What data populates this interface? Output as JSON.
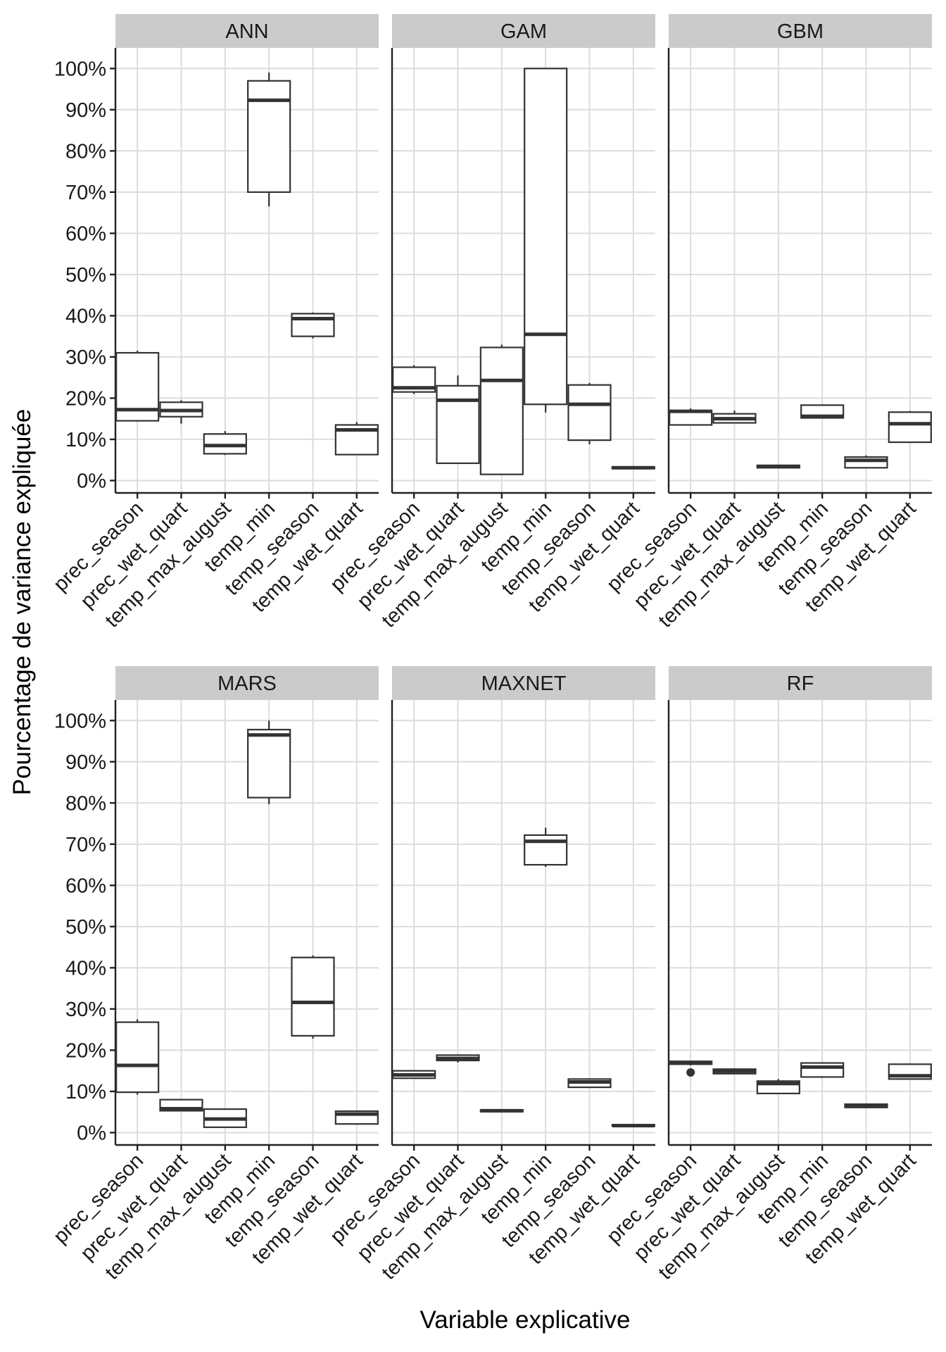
{
  "chart_data": {
    "type": "boxplot",
    "ylabel": "Pourcentage de variance expliquée",
    "xlabel": "Variable explicative",
    "ylim": [
      -3,
      105
    ],
    "yticks": [
      0,
      10,
      20,
      30,
      40,
      50,
      60,
      70,
      80,
      90,
      100
    ],
    "ytick_labels": [
      "0%",
      "10%",
      "20%",
      "30%",
      "40%",
      "50%",
      "60%",
      "70%",
      "80%",
      "90%",
      "100%"
    ],
    "categories": [
      "prec_season",
      "prec_wet_quart",
      "temp_max_august",
      "temp_min",
      "temp_season",
      "temp_wet_quart"
    ],
    "grid": true,
    "panels": [
      {
        "title": "ANN",
        "boxes": [
          {
            "category": "prec_season",
            "min": 14.5,
            "q1": 14.5,
            "median": 17.2,
            "q3": 31.0,
            "max": 31.5,
            "outliers": []
          },
          {
            "category": "prec_wet_quart",
            "min": 13.8,
            "q1": 15.5,
            "median": 17.0,
            "q3": 19.0,
            "max": 19.5,
            "outliers": []
          },
          {
            "category": "temp_max_august",
            "min": 6.2,
            "q1": 6.5,
            "median": 8.5,
            "q3": 11.3,
            "max": 12.0,
            "outliers": []
          },
          {
            "category": "temp_min",
            "min": 66.5,
            "q1": 70.0,
            "median": 92.3,
            "q3": 97.0,
            "max": 99.0,
            "outliers": []
          },
          {
            "category": "temp_season",
            "min": 34.5,
            "q1": 35.0,
            "median": 39.3,
            "q3": 40.5,
            "max": 40.8,
            "outliers": []
          },
          {
            "category": "temp_wet_quart",
            "min": 6.2,
            "q1": 6.3,
            "median": 12.3,
            "q3": 13.5,
            "max": 14.2,
            "outliers": []
          }
        ]
      },
      {
        "title": "GAM",
        "boxes": [
          {
            "category": "prec_season",
            "min": 21.0,
            "q1": 21.5,
            "median": 22.5,
            "q3": 27.5,
            "max": 28.0,
            "outliers": []
          },
          {
            "category": "prec_wet_quart",
            "min": 4.2,
            "q1": 4.2,
            "median": 19.5,
            "q3": 23.0,
            "max": 25.5,
            "outliers": []
          },
          {
            "category": "temp_max_august",
            "min": 1.5,
            "q1": 1.5,
            "median": 24.3,
            "q3": 32.3,
            "max": 33.0,
            "outliers": []
          },
          {
            "category": "temp_min",
            "min": 16.5,
            "q1": 18.5,
            "median": 35.5,
            "q3": 100.0,
            "max": 100.0,
            "outliers": []
          },
          {
            "category": "temp_season",
            "min": 8.8,
            "q1": 9.8,
            "median": 18.5,
            "q3": 23.2,
            "max": 23.7,
            "outliers": []
          },
          {
            "category": "temp_wet_quart",
            "min": 2.8,
            "q1": 2.9,
            "median": 3.1,
            "q3": 3.3,
            "max": 3.4,
            "outliers": []
          }
        ]
      },
      {
        "title": "GBM",
        "boxes": [
          {
            "category": "prec_season",
            "min": 13.5,
            "q1": 13.5,
            "median": 16.8,
            "q3": 17.0,
            "max": 17.5,
            "outliers": []
          },
          {
            "category": "prec_wet_quart",
            "min": 14.0,
            "q1": 14.0,
            "median": 15.0,
            "q3": 16.2,
            "max": 17.0,
            "outliers": []
          },
          {
            "category": "temp_max_august",
            "min": 3.1,
            "q1": 3.1,
            "median": 3.4,
            "q3": 3.7,
            "max": 3.8,
            "outliers": []
          },
          {
            "category": "temp_min",
            "min": 15.2,
            "q1": 15.2,
            "median": 15.6,
            "q3": 18.3,
            "max": 18.5,
            "outliers": []
          },
          {
            "category": "temp_season",
            "min": 3.1,
            "q1": 3.1,
            "median": 4.9,
            "q3": 5.7,
            "max": 6.1,
            "outliers": []
          },
          {
            "category": "temp_wet_quart",
            "min": 9.3,
            "q1": 9.3,
            "median": 13.8,
            "q3": 16.6,
            "max": 16.9,
            "outliers": []
          }
        ]
      },
      {
        "title": "MARS",
        "boxes": [
          {
            "category": "prec_season",
            "min": 9.2,
            "q1": 9.8,
            "median": 16.3,
            "q3": 26.8,
            "max": 27.5,
            "outliers": []
          },
          {
            "category": "prec_wet_quart",
            "min": 5.3,
            "q1": 5.3,
            "median": 5.8,
            "q3": 8.0,
            "max": 8.2,
            "outliers": []
          },
          {
            "category": "temp_max_august",
            "min": 1.3,
            "q1": 1.3,
            "median": 3.3,
            "q3": 5.7,
            "max": 5.7,
            "outliers": []
          },
          {
            "category": "temp_min",
            "min": 79.7,
            "q1": 81.3,
            "median": 96.5,
            "q3": 97.8,
            "max": 100.0,
            "outliers": []
          },
          {
            "category": "temp_season",
            "min": 22.8,
            "q1": 23.5,
            "median": 31.6,
            "q3": 42.5,
            "max": 43.0,
            "outliers": []
          },
          {
            "category": "temp_wet_quart",
            "min": 2.1,
            "q1": 2.1,
            "median": 4.5,
            "q3": 5.2,
            "max": 5.4,
            "outliers": []
          }
        ]
      },
      {
        "title": "MAXNET",
        "boxes": [
          {
            "category": "prec_season",
            "min": 13.2,
            "q1": 13.2,
            "median": 14.0,
            "q3": 15.0,
            "max": 15.2,
            "outliers": []
          },
          {
            "category": "prec_wet_quart",
            "min": 17.0,
            "q1": 17.5,
            "median": 18.0,
            "q3": 18.8,
            "max": 19.0,
            "outliers": []
          },
          {
            "category": "temp_max_august",
            "min": 5.1,
            "q1": 5.1,
            "median": 5.3,
            "q3": 5.5,
            "max": 5.5,
            "outliers": []
          },
          {
            "category": "temp_min",
            "min": 64.5,
            "q1": 65.0,
            "median": 70.7,
            "q3": 72.2,
            "max": 74.0,
            "outliers": []
          },
          {
            "category": "temp_season",
            "min": 11.0,
            "q1": 11.0,
            "median": 12.3,
            "q3": 13.0,
            "max": 13.2,
            "outliers": []
          },
          {
            "category": "temp_wet_quart",
            "min": 1.5,
            "q1": 1.6,
            "median": 1.7,
            "q3": 1.9,
            "max": 1.9,
            "outliers": []
          }
        ]
      },
      {
        "title": "RF",
        "boxes": [
          {
            "category": "prec_season",
            "min": 16.3,
            "q1": 16.6,
            "median": 16.9,
            "q3": 17.3,
            "max": 17.5,
            "outliers": [
              14.6
            ]
          },
          {
            "category": "prec_wet_quart",
            "min": 14.2,
            "q1": 14.3,
            "median": 14.9,
            "q3": 15.4,
            "max": 15.6,
            "outliers": []
          },
          {
            "category": "temp_max_august",
            "min": 9.5,
            "q1": 9.5,
            "median": 11.9,
            "q3": 12.5,
            "max": 13.0,
            "outliers": []
          },
          {
            "category": "temp_min",
            "min": 13.3,
            "q1": 13.5,
            "median": 15.9,
            "q3": 16.9,
            "max": 17.0,
            "outliers": []
          },
          {
            "category": "temp_season",
            "min": 6.0,
            "q1": 6.1,
            "median": 6.5,
            "q3": 6.9,
            "max": 7.0,
            "outliers": []
          },
          {
            "category": "temp_wet_quart",
            "min": 12.8,
            "q1": 13.0,
            "median": 13.8,
            "q3": 16.6,
            "max": 16.7,
            "outliers": []
          }
        ]
      }
    ]
  }
}
